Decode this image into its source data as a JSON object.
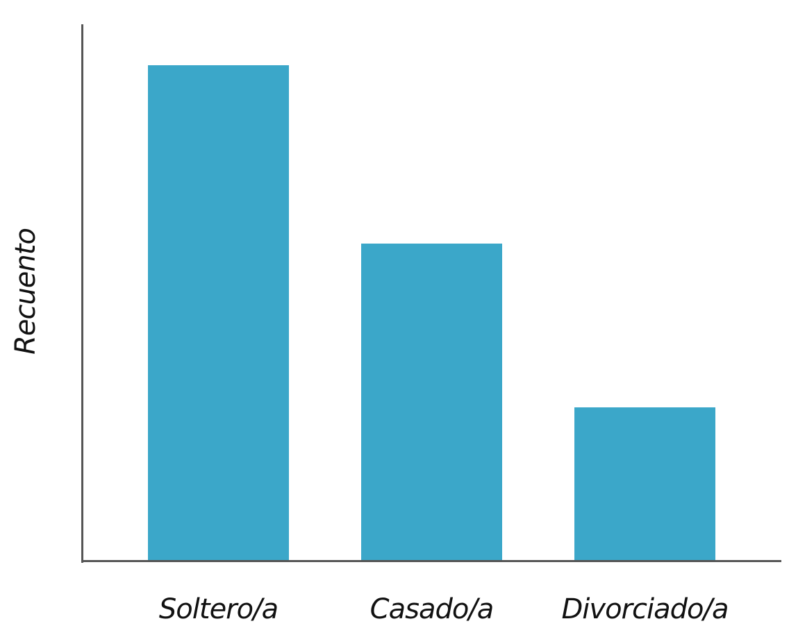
{
  "chart_data": {
    "type": "bar",
    "title": "",
    "xlabel": "",
    "ylabel": "Recuento",
    "categories": [
      "Soltero/a",
      "Casado/a",
      "Divorciado/a"
    ],
    "values": [
      100,
      64,
      31
    ],
    "ylim": [
      0,
      108
    ],
    "grid": false,
    "legend": null,
    "bar_color": "#3BA7C9",
    "axis_color": "#555555",
    "note": "No tick labels shown; values are relative heights scaled so the tallest bar = 100"
  }
}
